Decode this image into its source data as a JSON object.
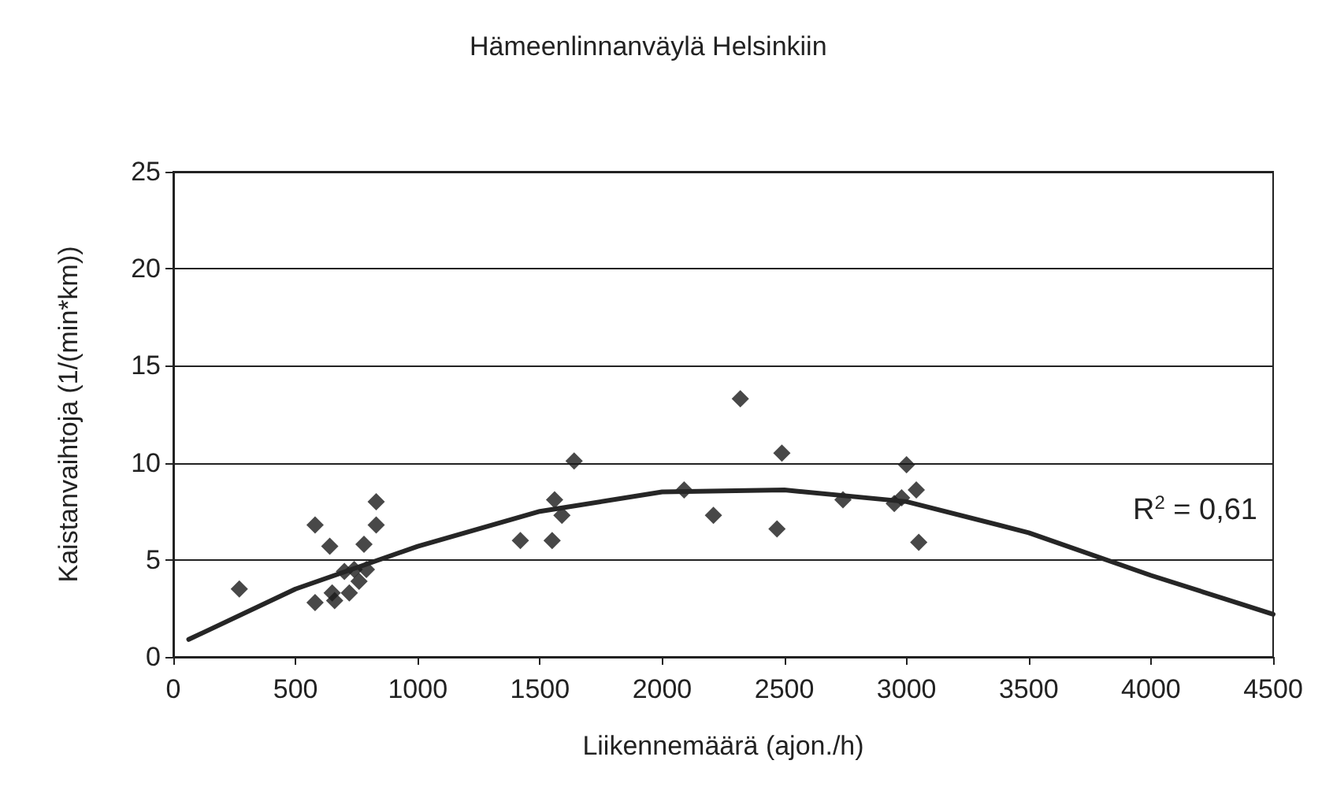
{
  "chart_data": {
    "type": "scatter",
    "title": "Hämeenlinnanväylä Helsinkiin",
    "xlabel": "Liikennemäärä (ajon./h)",
    "ylabel": "Kaistanvaihtoja (1/(min*km))",
    "xlim": [
      0,
      4500
    ],
    "xticks": [
      0,
      500,
      1000,
      1500,
      2000,
      2500,
      3000,
      3500,
      4000,
      4500
    ],
    "ylim": [
      0,
      25
    ],
    "yticks": [
      0,
      5,
      10,
      15,
      20,
      25
    ],
    "grid": "y",
    "marker": "diamond",
    "annotations": [
      "R$^{2}$ = 0,61"
    ],
    "series": [
      {
        "color": "#1a1a1a",
        "x": [
          270,
          580,
          640,
          580,
          660,
          650,
          720,
          700,
          740,
          790,
          760,
          780,
          830,
          830,
          1420,
          1550,
          1560,
          1590,
          1640,
          2090,
          2210,
          2320,
          2470,
          2490,
          2740,
          2950,
          2980,
          3000,
          3040,
          3050
        ],
        "values": [
          3.5,
          6.8,
          5.7,
          2.8,
          2.9,
          3.3,
          3.3,
          4.4,
          4.5,
          4.5,
          3.9,
          5.8,
          6.8,
          8.0,
          6.0,
          6.0,
          8.1,
          7.3,
          10.1,
          8.6,
          7.3,
          13.3,
          6.6,
          10.5,
          8.1,
          7.9,
          8.2,
          9.9,
          8.6,
          5.9
        ]
      },
      {
        "type": "line",
        "color": "#262626",
        "marker": "none",
        "x": [
          63,
          500,
          1000,
          1500,
          2000,
          2500,
          3000,
          3500,
          4000,
          4500
        ],
        "values": [
          0.9,
          3.5,
          5.7,
          7.5,
          8.5,
          8.6,
          8.0,
          6.4,
          4.2,
          2.2
        ]
      }
    ]
  }
}
